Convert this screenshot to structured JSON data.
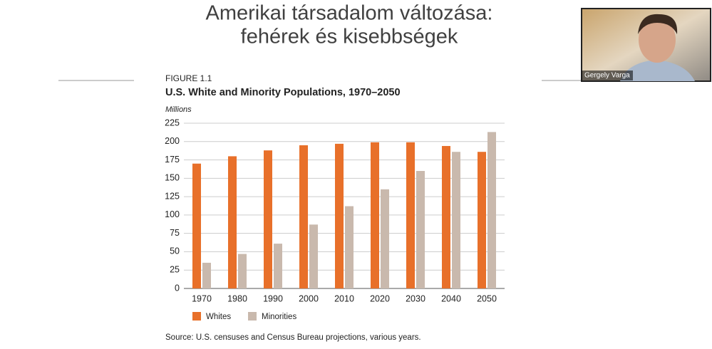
{
  "slide": {
    "title_lines": [
      "Amerikai társadalom változása:",
      "fehérek és kisebbségek"
    ]
  },
  "video": {
    "name": "Gergely Varga"
  },
  "chart_data": {
    "type": "bar",
    "figure_label": "FIGURE 1.1",
    "title": "U.S. White and Minority Populations, 1970–2050",
    "y_label": "Millions",
    "source": "Source: U.S. censuses and Census Bureau projections, various years.",
    "categories": [
      "1970",
      "1980",
      "1990",
      "2000",
      "2010",
      "2020",
      "2030",
      "2040",
      "2050"
    ],
    "series": [
      {
        "name": "Whites",
        "color": "#e8702a",
        "values": [
          170,
          180,
          188,
          195,
          197,
          199,
          199,
          194,
          186
        ]
      },
      {
        "name": "Minorities",
        "color": "#c9b9ad",
        "values": [
          35,
          47,
          61,
          87,
          112,
          135,
          160,
          186,
          213
        ]
      }
    ],
    "ylim": [
      0,
      225
    ],
    "yticks": [
      0,
      25,
      50,
      75,
      100,
      125,
      150,
      175,
      200,
      225
    ],
    "grid": true
  }
}
